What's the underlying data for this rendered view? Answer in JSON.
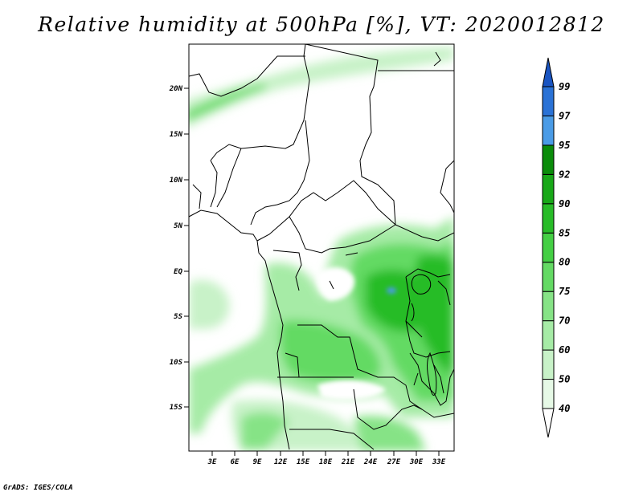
{
  "title": "Relative humidity at 500hPa [%], VT: 2020012812",
  "credit": "GrADS: IGES/COLA",
  "map": {
    "lat_labels": [
      "20N",
      "15N",
      "10N",
      "5N",
      "EQ",
      "5S",
      "10S",
      "15S"
    ],
    "lon_labels": [
      "3E",
      "6E",
      "9E",
      "12E",
      "15E",
      "18E",
      "21E",
      "24E",
      "27E",
      "30E",
      "33E"
    ]
  },
  "colorbar": {
    "levels": [
      "40",
      "50",
      "60",
      "70",
      "75",
      "80",
      "85",
      "90",
      "92",
      "95",
      "97",
      "99"
    ],
    "colors": [
      "#ffffff",
      "#e6f9e6",
      "#c8f2c8",
      "#a6eba6",
      "#86e386",
      "#64da64",
      "#44cf44",
      "#28bc28",
      "#18a818",
      "#0a8c0a",
      "#4a9be6",
      "#2a72d6",
      "#1a55c2"
    ]
  }
}
